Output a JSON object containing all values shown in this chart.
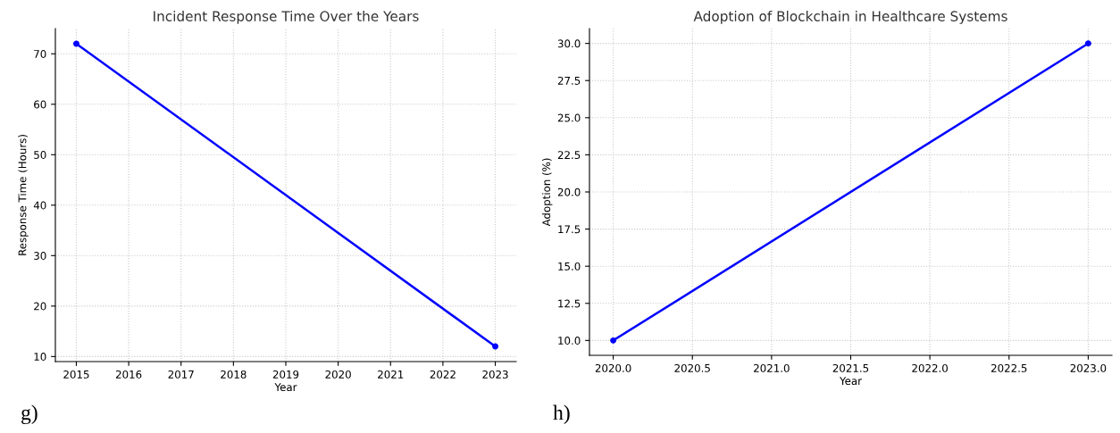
{
  "chart_data": [
    {
      "type": "line",
      "title": "Incident Response Time Over the Years",
      "xlabel": "Year",
      "ylabel": "Response Time (Hours)",
      "x": [
        2015,
        2023
      ],
      "series": [
        {
          "color": "#0000ff",
          "values": [
            72,
            12
          ]
        }
      ],
      "xlim": [
        2014.6,
        2023.4
      ],
      "xticks": [
        2015,
        2016,
        2017,
        2018,
        2019,
        2020,
        2021,
        2022,
        2023
      ],
      "ylim": [
        9,
        75
      ],
      "yticks": [
        10,
        20,
        30,
        40,
        50,
        60,
        70
      ],
      "grid": true,
      "marker": "circle",
      "line_style": "solid",
      "annotations": [
        "g)"
      ]
    },
    {
      "type": "line",
      "title": "Adoption of Blockchain in Healthcare Systems",
      "xlabel": "Year",
      "ylabel": "Adoption (%)",
      "x": [
        2020,
        2023
      ],
      "series": [
        {
          "color": "#0000ff",
          "values": [
            10,
            30
          ]
        }
      ],
      "xlim": [
        2019.85,
        2023.15
      ],
      "xticks": [
        {
          "value": 2020,
          "label": "2020.0"
        },
        {
          "value": 2020.5,
          "label": "2020.5"
        },
        {
          "value": 2021,
          "label": "2021.0"
        },
        {
          "value": 2021.5,
          "label": "2021.5"
        },
        {
          "value": 2022,
          "label": "2022.0"
        },
        {
          "value": 2022.5,
          "label": "2022.5"
        },
        {
          "value": 2023,
          "label": "2023.0"
        }
      ],
      "ylim": [
        9,
        31
      ],
      "yticks": [
        {
          "value": 10,
          "label": "10.0"
        },
        {
          "value": 12.5,
          "label": "12.5"
        },
        {
          "value": 15,
          "label": "15.0"
        },
        {
          "value": 17.5,
          "label": "17.5"
        },
        {
          "value": 20,
          "label": "20.0"
        },
        {
          "value": 22.5,
          "label": "22.5"
        },
        {
          "value": 25,
          "label": "25.0"
        },
        {
          "value": 27.5,
          "label": "27.5"
        },
        {
          "value": 30,
          "label": "30.0"
        }
      ],
      "grid": true,
      "marker": "circle",
      "line_style": "solid",
      "annotations": [
        "h)"
      ]
    }
  ]
}
